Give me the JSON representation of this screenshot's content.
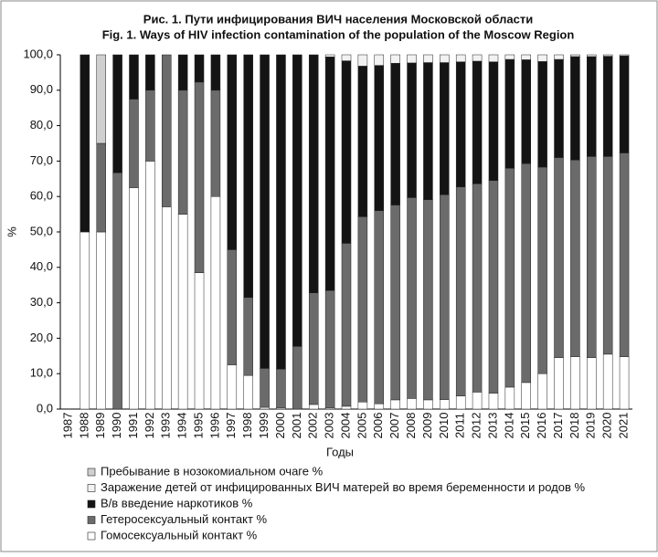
{
  "chart_data": {
    "type": "stacked_bar",
    "title": "Рис. 1. Пути инфицирования ВИЧ населения Московской области",
    "subtitle": "Fig. 1. Ways of HIV infection contamination of the population of the Moscow Region",
    "x_label": "Годы",
    "y_label": "%",
    "categories": [
      "1987",
      "1988",
      "1989",
      "1990",
      "1991",
      "1992",
      "1993",
      "1994",
      "1995",
      "1996",
      "1997",
      "1998",
      "1999",
      "2000",
      "2001",
      "2002",
      "2003",
      "2004",
      "2005",
      "2006",
      "2007",
      "2008",
      "2009",
      "2010",
      "2011",
      "2012",
      "2013",
      "2014",
      "2015",
      "2016",
      "2017",
      "2018",
      "2019",
      "2020",
      "2021"
    ],
    "series": [
      {
        "name": "Гомосексуальный контакт %",
        "color": "#ffffff",
        "values": [
          0,
          50,
          50,
          0,
          62.5,
          70,
          57.1,
          55,
          38.5,
          60,
          12.5,
          9.5,
          0.5,
          0.3,
          0.2,
          1.3,
          0.3,
          0.8,
          2,
          1.5,
          2.6,
          3,
          2.6,
          2.7,
          3.7,
          4.8,
          4.5,
          6.2,
          7.5,
          10,
          14.5,
          14.8,
          14.5,
          15.5,
          14.8
        ]
      },
      {
        "name": "Гетеросексуальный контакт %",
        "color": "#6b6b6b",
        "values": [
          0,
          0,
          25,
          66.7,
          25,
          20,
          42.9,
          35,
          53.8,
          30,
          32.5,
          22,
          11,
          11,
          17.5,
          31.5,
          33.2,
          46,
          52.3,
          54.5,
          55,
          56.7,
          56.5,
          57.8,
          59,
          58.8,
          60,
          61.8,
          61.8,
          58.3,
          56.5,
          55.5,
          56.8,
          55.8,
          57.5
        ]
      },
      {
        "name": "В/в введение наркотиков %",
        "color": "#141414",
        "values": [
          0,
          50,
          0,
          33.3,
          12.5,
          10,
          0,
          10,
          7.7,
          10,
          55,
          68.5,
          88.5,
          88.7,
          82.3,
          67.2,
          65.9,
          51.5,
          42.5,
          41,
          40,
          38,
          38.7,
          37.3,
          35.3,
          34.6,
          33.5,
          30.7,
          29.3,
          29.8,
          27.7,
          29.2,
          28.2,
          28.3,
          27.4
        ]
      },
      {
        "name": "Заражение детей от инфицированных ВИЧ матерей во время беременности и родов %",
        "color": "#f2f2f2",
        "values": [
          0,
          0,
          0,
          0,
          0,
          0,
          0,
          0,
          0,
          0,
          0,
          0,
          0,
          0,
          0,
          0,
          0.6,
          1.7,
          3.2,
          3,
          2.4,
          2.3,
          2.2,
          2.2,
          2,
          1.8,
          2,
          1.3,
          1.4,
          1.9,
          1.3,
          0.5,
          0.5,
          0.4,
          0.3
        ]
      },
      {
        "name": "Пребывание в нозокомиальном очаге %",
        "color": "#cfcfcf",
        "values": [
          0,
          0,
          25,
          0,
          0,
          0,
          0,
          0,
          0,
          0,
          0,
          0,
          0,
          0,
          0,
          0,
          0,
          0,
          0,
          0,
          0,
          0,
          0,
          0,
          0,
          0,
          0,
          0,
          0,
          0,
          0,
          0,
          0,
          0,
          0
        ]
      }
    ],
    "ylim": [
      0,
      100
    ],
    "yticks": [
      {
        "value": 0,
        "label": "0,0"
      },
      {
        "value": 10,
        "label": "10,0"
      },
      {
        "value": 20,
        "label": "20,0"
      },
      {
        "value": 30,
        "label": "30,0"
      },
      {
        "value": 40,
        "label": "40,0"
      },
      {
        "value": 50,
        "label": "50,0"
      },
      {
        "value": 60,
        "label": "60,0"
      },
      {
        "value": 70,
        "label": "70,0"
      },
      {
        "value": 80,
        "label": "80,0"
      },
      {
        "value": 90,
        "label": "90,0"
      },
      {
        "value": 100,
        "label": "100,0"
      }
    ]
  }
}
